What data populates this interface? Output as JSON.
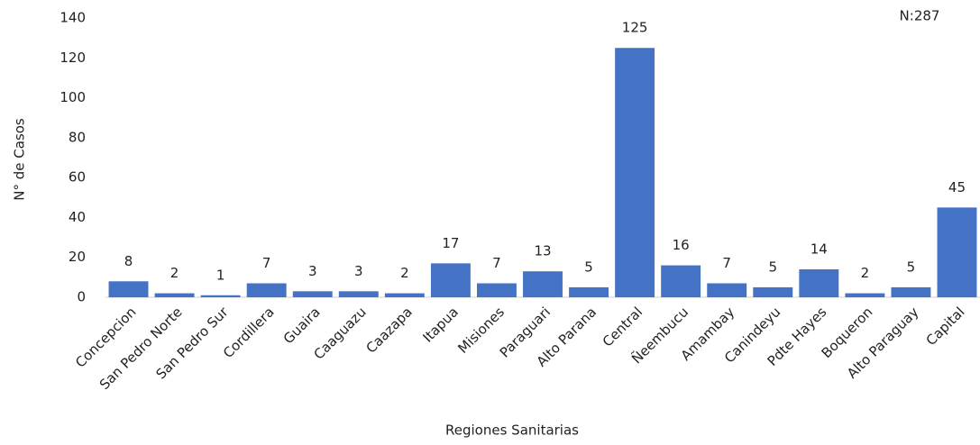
{
  "chart_data": {
    "type": "bar",
    "annotation": "N:287",
    "x_label": "Regiones Sanitarias",
    "y_label": "N° de Casos",
    "categories": [
      "Concepcion",
      "San Pedro Norte",
      "San Pedro Sur",
      "Cordillera",
      "Guaira",
      "Caaguazu",
      "Caazapa",
      "Itapua",
      "Misiones",
      "Paraguari",
      "Alto Parana",
      "Central",
      "Ñeembucu",
      "Amambay",
      "Canindeyu",
      "Pdte Hayes",
      "Boqueron",
      "Alto Paraguay",
      "Capital"
    ],
    "values": [
      8,
      2,
      1,
      7,
      3,
      3,
      2,
      17,
      7,
      13,
      5,
      125,
      16,
      7,
      5,
      14,
      2,
      5,
      45
    ],
    "color": "#4472c4",
    "ylim": [
      0,
      140
    ],
    "yticks": [
      0,
      20,
      40,
      60,
      80,
      100,
      120,
      140
    ],
    "grid": false
  }
}
